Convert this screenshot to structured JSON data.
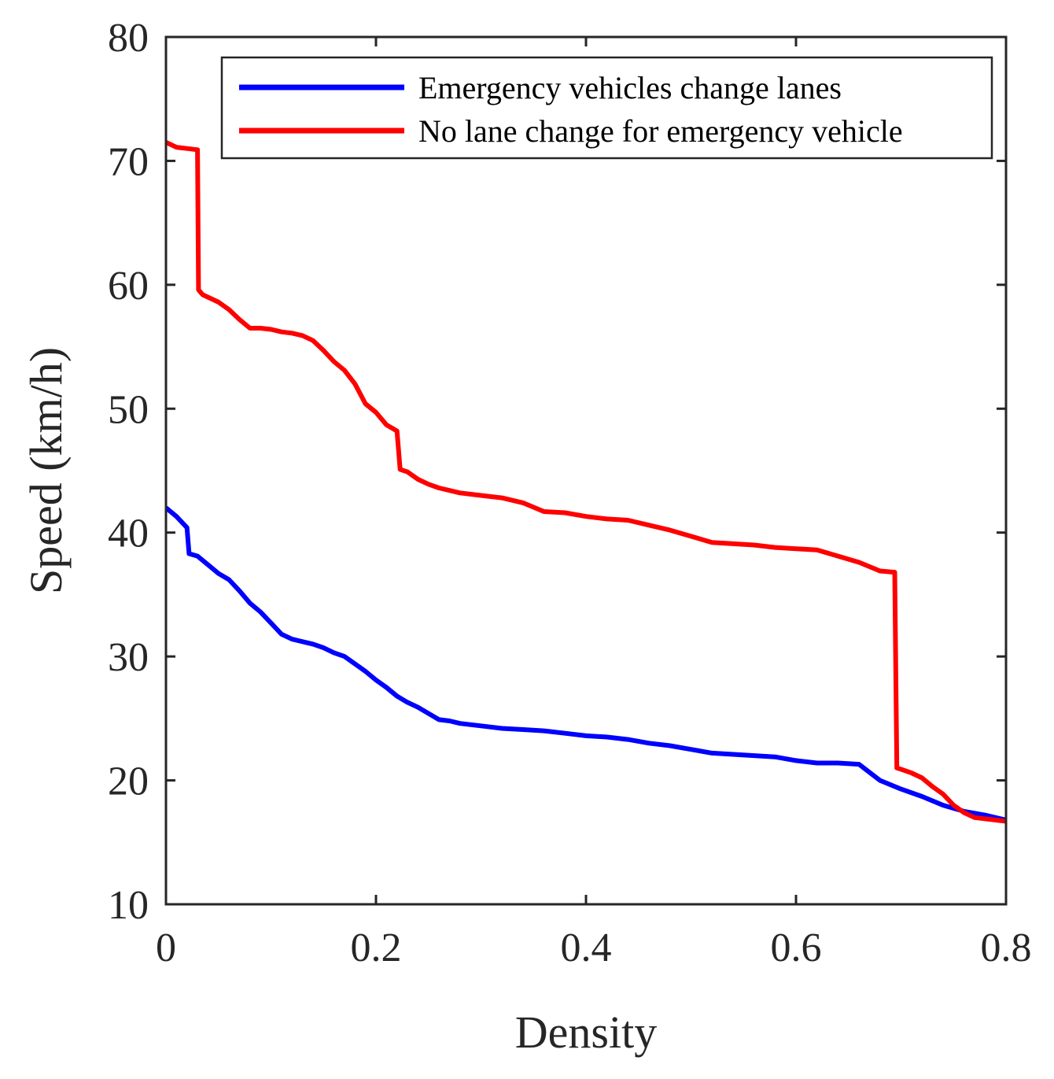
{
  "chart_data": {
    "type": "line",
    "title": "",
    "xlabel": "Density",
    "ylabel": "Speed (km/h)",
    "xlim": [
      0,
      0.8
    ],
    "ylim": [
      10,
      80
    ],
    "xticks": [
      0,
      0.2,
      0.4,
      0.6,
      0.8
    ],
    "xtick_labels": [
      "0",
      "0.2",
      "0.4",
      "0.6",
      "0.8"
    ],
    "yticks": [
      10,
      20,
      30,
      40,
      50,
      60,
      70,
      80
    ],
    "ytick_labels": [
      "10",
      "20",
      "30",
      "40",
      "50",
      "60",
      "70",
      "80"
    ],
    "grid": false,
    "legend_position": "top-right",
    "series": [
      {
        "name": "Emergency vehicles change lanes",
        "color": "#0000ff",
        "x": [
          0.0,
          0.01,
          0.02,
          0.022,
          0.03,
          0.04,
          0.05,
          0.06,
          0.07,
          0.08,
          0.09,
          0.1,
          0.11,
          0.12,
          0.13,
          0.14,
          0.15,
          0.16,
          0.17,
          0.18,
          0.19,
          0.2,
          0.21,
          0.22,
          0.23,
          0.24,
          0.25,
          0.26,
          0.27,
          0.28,
          0.3,
          0.32,
          0.34,
          0.36,
          0.38,
          0.4,
          0.42,
          0.44,
          0.46,
          0.48,
          0.5,
          0.52,
          0.54,
          0.56,
          0.58,
          0.6,
          0.62,
          0.64,
          0.66,
          0.68,
          0.7,
          0.72,
          0.74,
          0.76,
          0.78,
          0.8
        ],
        "y": [
          42.0,
          41.3,
          40.4,
          38.3,
          38.1,
          37.4,
          36.7,
          36.2,
          35.3,
          34.3,
          33.6,
          32.7,
          31.8,
          31.4,
          31.2,
          31.0,
          30.7,
          30.3,
          30.0,
          29.4,
          28.8,
          28.1,
          27.5,
          26.8,
          26.3,
          25.9,
          25.4,
          24.9,
          24.8,
          24.6,
          24.4,
          24.2,
          24.1,
          24.0,
          23.8,
          23.6,
          23.5,
          23.3,
          23.0,
          22.8,
          22.5,
          22.2,
          22.1,
          22.0,
          21.9,
          21.6,
          21.4,
          21.4,
          21.3,
          20.0,
          19.3,
          18.7,
          18.0,
          17.5,
          17.2,
          16.8
        ]
      },
      {
        "name": "No lane change for emergency vehicle",
        "color": "#ff0000",
        "x": [
          0.0,
          0.01,
          0.02,
          0.03,
          0.031,
          0.035,
          0.05,
          0.06,
          0.07,
          0.08,
          0.09,
          0.1,
          0.11,
          0.12,
          0.13,
          0.14,
          0.15,
          0.16,
          0.17,
          0.18,
          0.19,
          0.2,
          0.21,
          0.22,
          0.223,
          0.23,
          0.24,
          0.25,
          0.26,
          0.28,
          0.3,
          0.32,
          0.34,
          0.36,
          0.38,
          0.4,
          0.42,
          0.44,
          0.46,
          0.48,
          0.5,
          0.52,
          0.54,
          0.56,
          0.58,
          0.6,
          0.62,
          0.64,
          0.66,
          0.68,
          0.694,
          0.696,
          0.7,
          0.71,
          0.72,
          0.73,
          0.74,
          0.75,
          0.76,
          0.77,
          0.8
        ],
        "y": [
          71.5,
          71.1,
          71.0,
          70.9,
          59.6,
          59.2,
          58.6,
          58.0,
          57.2,
          56.5,
          56.5,
          56.4,
          56.2,
          56.1,
          55.9,
          55.5,
          54.7,
          53.8,
          53.1,
          52.0,
          50.4,
          49.7,
          48.7,
          48.2,
          45.1,
          44.9,
          44.3,
          43.9,
          43.6,
          43.2,
          43.0,
          42.8,
          42.4,
          41.7,
          41.6,
          41.3,
          41.1,
          41.0,
          40.6,
          40.2,
          39.7,
          39.2,
          39.1,
          39.0,
          38.8,
          38.7,
          38.6,
          38.1,
          37.6,
          36.9,
          36.8,
          21.0,
          20.9,
          20.6,
          20.2,
          19.5,
          18.9,
          18.0,
          17.4,
          17.0,
          16.7
        ]
      }
    ]
  }
}
